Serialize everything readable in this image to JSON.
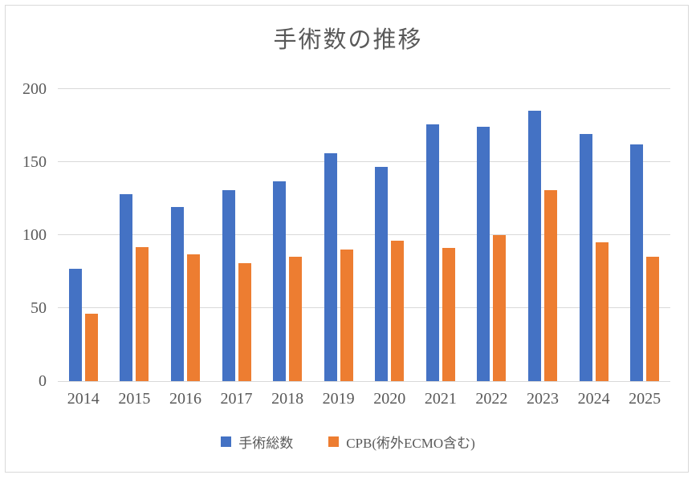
{
  "style": {
    "grid_color": "#D9D9D9",
    "frame_color": "#D9D9D9",
    "text_color": "#595959",
    "series_blue": "#4472C4",
    "series_orange": "#ED7D31"
  },
  "chart_data": {
    "type": "bar",
    "title": "手術数の推移",
    "categories": [
      "2014",
      "2015",
      "2016",
      "2017",
      "2018",
      "2019",
      "2020",
      "2021",
      "2022",
      "2023",
      "2024",
      "2025"
    ],
    "series": [
      {
        "name": "手術総数",
        "color": "#4472C4",
        "values": [
          77,
          128,
          119,
          131,
          137,
          156,
          147,
          176,
          174,
          185,
          169,
          162
        ]
      },
      {
        "name": "CPB(術外ECMO含む)",
        "color": "#ED7D31",
        "values": [
          46,
          92,
          87,
          81,
          85,
          90,
          96,
          91,
          100,
          131,
          95,
          85
        ]
      }
    ],
    "xlabel": "",
    "ylabel": "",
    "ylim": [
      0,
      200
    ],
    "yticks": [
      0,
      50,
      100,
      150,
      200
    ],
    "grid": true,
    "legend_position": "bottom"
  }
}
